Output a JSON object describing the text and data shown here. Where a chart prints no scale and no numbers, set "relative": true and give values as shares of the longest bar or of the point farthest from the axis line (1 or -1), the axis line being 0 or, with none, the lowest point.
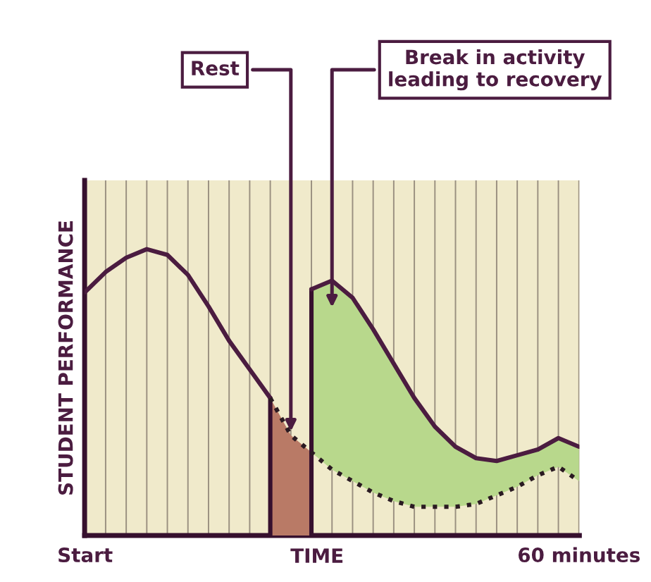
{
  "chart_data": {
    "type": "line",
    "relative": true,
    "xlabel": "TIME",
    "ylabel": "STUDENT PERFORMANCE",
    "categories": [
      "Start",
      null,
      null,
      null,
      null,
      null,
      null,
      null,
      null,
      null,
      null,
      null,
      null,
      null,
      null,
      null,
      null,
      null,
      null,
      null,
      null,
      null,
      null,
      null,
      "60 minutes"
    ],
    "grid": "x",
    "legend": false,
    "marker": "none",
    "series": [
      {
        "type": "area",
        "color": "#b97a66",
        "values": [
          null,
          null,
          null,
          null,
          null,
          null,
          null,
          null,
          null,
          0.48,
          0.35,
          0.29,
          null,
          null,
          null,
          null,
          null,
          null,
          null,
          null,
          null,
          null,
          null,
          null,
          null
        ]
      },
      {
        "type": "area",
        "color": "#b8d88c",
        "values": [
          null,
          null,
          null,
          null,
          null,
          null,
          null,
          null,
          null,
          null,
          null,
          0.86,
          0.89,
          0.83,
          0.72,
          0.6,
          0.48,
          0.38,
          0.31,
          0.27,
          0.26,
          0.28,
          0.3,
          0.34,
          0.31
        ]
      },
      {
        "color": "#4b1c40",
        "line_style": "solid",
        "values": [
          null,
          null,
          null,
          null,
          null,
          null,
          null,
          null,
          null,
          null,
          null,
          0.86,
          0.89,
          0.83,
          0.72,
          0.6,
          0.48,
          0.38,
          0.31,
          0.27,
          0.26,
          0.28,
          0.3,
          0.34,
          0.31
        ]
      },
      {
        "color": "#4b1c40",
        "line_style": "solid",
        "values": [
          0.85,
          0.92,
          0.97,
          1,
          0.98,
          0.91,
          0.8,
          0.68,
          0.58,
          0.48,
          null,
          null,
          null,
          null,
          null,
          null,
          null,
          null,
          null,
          null,
          null,
          null,
          null,
          null,
          null
        ]
      },
      {
        "color": "#2a1a22",
        "line_style": "dotted",
        "values": [
          null,
          null,
          null,
          null,
          null,
          null,
          null,
          null,
          null,
          0.48,
          0.35,
          0.29,
          0.23,
          0.19,
          0.15,
          0.12,
          0.1,
          0.1,
          0.1,
          0.11,
          0.14,
          0.17,
          0.21,
          0.24,
          0.19
        ]
      }
    ],
    "annotations": [
      "Rest",
      "Break in activity\nleading to recovery"
    ]
  }
}
